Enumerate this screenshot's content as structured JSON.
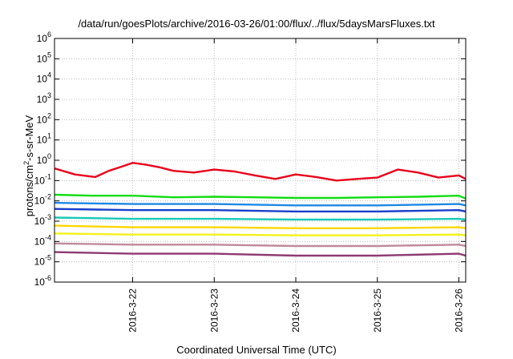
{
  "chart_data": {
    "type": "line",
    "title": "/data/run/goesPlots/archive/2016-03-26/01:00/flux/../flux/5daysMarsFluxes.txt",
    "xlabel": "Coordinated Universal Time (UTC)",
    "ylabel_parts": [
      "protons/cm",
      "2",
      "-s-sr-MeV"
    ],
    "y_scale": "log",
    "ylim": [
      1e-06,
      1000000.0
    ],
    "y_ticks": [
      {
        "base": "10",
        "exp": "6",
        "value": 1000000.0
      },
      {
        "base": "10",
        "exp": "5",
        "value": 100000.0
      },
      {
        "base": "10",
        "exp": "4",
        "value": 10000.0
      },
      {
        "base": "10",
        "exp": "3",
        "value": 1000.0
      },
      {
        "base": "10",
        "exp": "2",
        "value": 100.0
      },
      {
        "base": "10",
        "exp": "1",
        "value": 10.0
      },
      {
        "base": "10",
        "exp": "0",
        "value": 1.0
      },
      {
        "base": "10",
        "exp": "-1",
        "value": 0.1
      },
      {
        "base": "10",
        "exp": "-2",
        "value": 0.01
      },
      {
        "base": "10",
        "exp": "-3",
        "value": 0.001
      },
      {
        "base": "10",
        "exp": "-4",
        "value": 0.0001
      },
      {
        "base": "10",
        "exp": "-5",
        "value": 1e-05
      },
      {
        "base": "10",
        "exp": "-6",
        "value": 1e-06
      }
    ],
    "xlim": [
      "2016-03-21 01:00",
      "2016-03-26 02:00"
    ],
    "x_ticks": [
      {
        "label": "2016-3-22",
        "value": "2016-03-22 00:00"
      },
      {
        "label": "2016-3-23",
        "value": "2016-03-23 00:00"
      },
      {
        "label": "2016-3-24",
        "value": "2016-03-24 00:00"
      },
      {
        "label": "2016-3-25",
        "value": "2016-03-25 00:00"
      },
      {
        "label": "2016-3-26",
        "value": "2016-03-26 00:00"
      }
    ],
    "grid": true,
    "legend": "none",
    "series": [
      {
        "color": "#e8001c",
        "x": [
          "2016-03-21 01:00",
          "2016-03-21 07:00",
          "2016-03-21 13:00",
          "2016-03-21 17:00",
          "2016-03-21 21:00",
          "2016-03-22 00:00",
          "2016-03-22 04:00",
          "2016-03-22 08:00",
          "2016-03-22 12:00",
          "2016-03-22 18:00",
          "2016-03-23 00:00",
          "2016-03-23 06:00",
          "2016-03-23 12:00",
          "2016-03-23 18:00",
          "2016-03-24 00:00",
          "2016-03-24 06:00",
          "2016-03-24 12:00",
          "2016-03-24 18:00",
          "2016-03-25 00:00",
          "2016-03-25 06:00",
          "2016-03-25 12:00",
          "2016-03-25 18:00",
          "2016-03-26 00:00",
          "2016-03-26 02:00"
        ],
        "values": [
          0.4,
          0.2,
          0.15,
          0.3,
          0.5,
          0.75,
          0.6,
          0.45,
          0.3,
          0.25,
          0.35,
          0.28,
          0.18,
          0.12,
          0.2,
          0.15,
          0.1,
          0.12,
          0.14,
          0.35,
          0.25,
          0.14,
          0.18,
          0.12
        ]
      },
      {
        "color": "#11dd11",
        "x": [
          "2016-03-21 01:00",
          "2016-03-21 12:00",
          "2016-03-22 00:00",
          "2016-03-22 12:00",
          "2016-03-23 00:00",
          "2016-03-23 12:00",
          "2016-03-24 00:00",
          "2016-03-24 12:00",
          "2016-03-25 00:00",
          "2016-03-25 12:00",
          "2016-03-26 00:00",
          "2016-03-26 02:00"
        ],
        "values": [
          0.02,
          0.018,
          0.018,
          0.015,
          0.016,
          0.015,
          0.014,
          0.014,
          0.015,
          0.016,
          0.018,
          0.013
        ]
      },
      {
        "color": "#1e88e5",
        "x": [
          "2016-03-21 01:00",
          "2016-03-22 00:00",
          "2016-03-23 00:00",
          "2016-03-24 00:00",
          "2016-03-25 00:00",
          "2016-03-26 00:00",
          "2016-03-26 02:00"
        ],
        "values": [
          0.008,
          0.007,
          0.007,
          0.006,
          0.006,
          0.007,
          0.006
        ]
      },
      {
        "color": "#1a3fcc",
        "x": [
          "2016-03-21 01:00",
          "2016-03-22 00:00",
          "2016-03-23 00:00",
          "2016-03-24 00:00",
          "2016-03-25 00:00",
          "2016-03-26 00:00",
          "2016-03-26 02:00"
        ],
        "values": [
          0.004,
          0.0035,
          0.0035,
          0.003,
          0.003,
          0.0035,
          0.003
        ]
      },
      {
        "color": "#19c9b6",
        "x": [
          "2016-03-21 01:00",
          "2016-03-22 00:00",
          "2016-03-23 00:00",
          "2016-03-24 00:00",
          "2016-03-25 00:00",
          "2016-03-26 00:00",
          "2016-03-26 02:00"
        ],
        "values": [
          0.0015,
          0.0013,
          0.0013,
          0.0012,
          0.0012,
          0.0013,
          0.0012
        ]
      },
      {
        "color": "#ffd700",
        "x": [
          "2016-03-21 01:00",
          "2016-03-22 00:00",
          "2016-03-23 00:00",
          "2016-03-24 00:00",
          "2016-03-25 00:00",
          "2016-03-26 00:00",
          "2016-03-26 02:00"
        ],
        "values": [
          0.0006,
          0.0005,
          0.0005,
          0.00045,
          0.00045,
          0.0005,
          0.00045
        ]
      },
      {
        "color": "#f2f21a",
        "x": [
          "2016-03-21 01:00",
          "2016-03-22 00:00",
          "2016-03-23 00:00",
          "2016-03-24 00:00",
          "2016-03-25 00:00",
          "2016-03-26 00:00",
          "2016-03-26 02:00"
        ],
        "values": [
          0.00025,
          0.00022,
          0.00022,
          0.0002,
          0.0002,
          0.00022,
          0.0002
        ]
      },
      {
        "color": "#c08a9a",
        "x": [
          "2016-03-21 01:00",
          "2016-03-22 00:00",
          "2016-03-23 00:00",
          "2016-03-24 00:00",
          "2016-03-25 00:00",
          "2016-03-26 00:00",
          "2016-03-26 02:00"
        ],
        "values": [
          8e-05,
          7e-05,
          7e-05,
          6e-05,
          6e-05,
          7e-05,
          6e-05
        ]
      },
      {
        "color": "#8e3a72",
        "x": [
          "2016-03-21 01:00",
          "2016-03-22 00:00",
          "2016-03-23 00:00",
          "2016-03-24 00:00",
          "2016-03-25 00:00",
          "2016-03-26 00:00",
          "2016-03-26 02:00"
        ],
        "values": [
          3e-05,
          2.5e-05,
          2.5e-05,
          2e-05,
          2e-05,
          2.5e-05,
          2e-05
        ]
      }
    ]
  }
}
